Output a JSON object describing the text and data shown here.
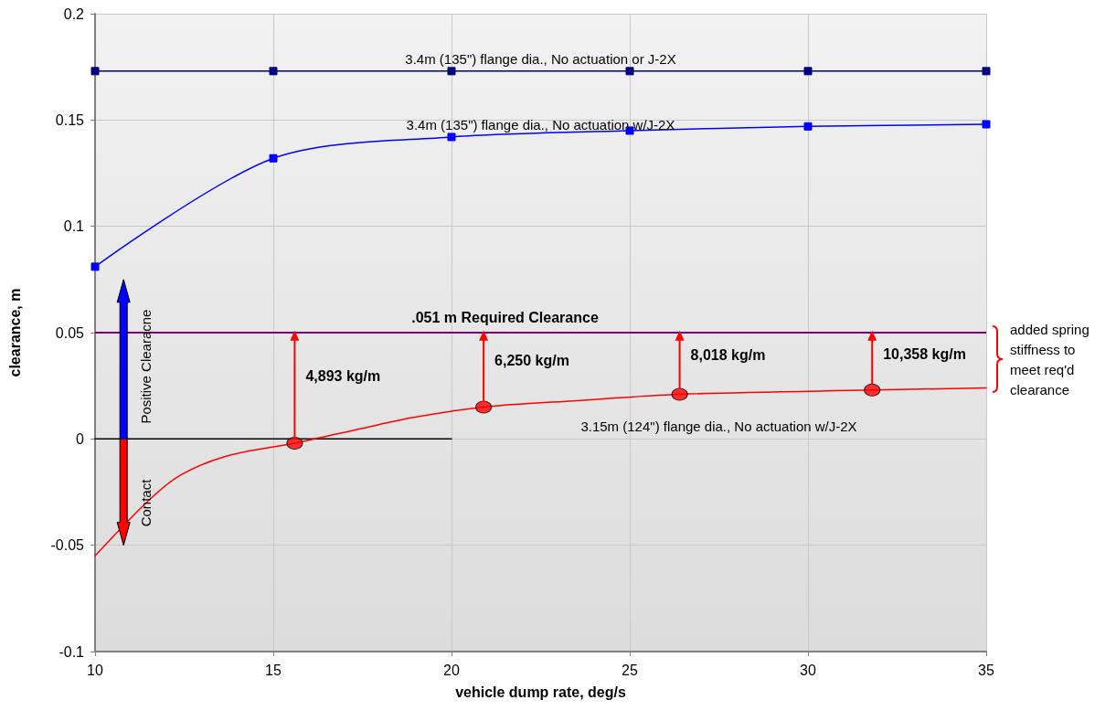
{
  "chart_data": {
    "type": "line",
    "xlabel": "vehicle dump rate, deg/s",
    "ylabel": "clearance, m",
    "xlim": [
      10,
      35
    ],
    "xticks": [
      10,
      15,
      20,
      25,
      30,
      35
    ],
    "ylim": [
      -0.1,
      0.2
    ],
    "yticks": [
      -0.1,
      -0.05,
      0,
      0.05,
      0.1,
      0.15,
      0.2
    ],
    "grid": true,
    "legend": false,
    "series": [
      {
        "name": "3.4m (135\") flange dia., No actuation or J-2X",
        "color": "#000080",
        "marker": "square",
        "x": [
          10,
          15,
          20,
          25,
          30,
          35
        ],
        "values": [
          0.173,
          0.173,
          0.173,
          0.173,
          0.173,
          0.173
        ]
      },
      {
        "name": "3.4m (135\") flange dia., No actuation w/J-2X",
        "color": "#0000ff",
        "marker": "square",
        "x": [
          10,
          15,
          20,
          25,
          30,
          35
        ],
        "values": [
          0.081,
          0.132,
          0.142,
          0.145,
          0.147,
          0.148
        ]
      },
      {
        "color": "#000000",
        "marker": "none",
        "x": [
          10,
          20
        ],
        "values": [
          0,
          0
        ]
      },
      {
        "name": "3.15m (124\") flange dia., No actuation w/J-2X",
        "color": "#ff0000",
        "marker": "none",
        "x": [
          10,
          11.5,
          12.4,
          13.7,
          15.6,
          17.5,
          18.9,
          20.9,
          23.5,
          26.4,
          31.8,
          35
        ],
        "values": [
          -0.055,
          -0.029,
          -0.017,
          -0.008,
          -0.002,
          0.005,
          0.01,
          0.015,
          0.018,
          0.021,
          0.023,
          0.024
        ]
      },
      {
        "type": "scatter",
        "color": "#ff0000",
        "marker": "circle",
        "x": [
          15.6,
          20.9,
          26.4,
          31.8
        ],
        "values": [
          -0.002,
          0.015,
          0.021,
          0.023
        ]
      }
    ],
    "ref_lines": [
      {
        "axis": "y",
        "value": 0.051,
        "label": ".051 m Required Clearance",
        "color": "#800080"
      }
    ],
    "annotations": [
      {
        "text": "4,893 kg/m",
        "x": 15.6,
        "y": 0.051
      },
      {
        "text": "6,250 kg/m",
        "x": 20.9,
        "y": 0.051
      },
      {
        "text": "8,018 kg/m",
        "x": 26.4,
        "y": 0.051
      },
      {
        "text": "10,358 kg/m",
        "x": 31.8,
        "y": 0.051
      },
      "Positive Clearacne",
      "Contact",
      "added spring stiffness to meet req'd clearance"
    ]
  }
}
